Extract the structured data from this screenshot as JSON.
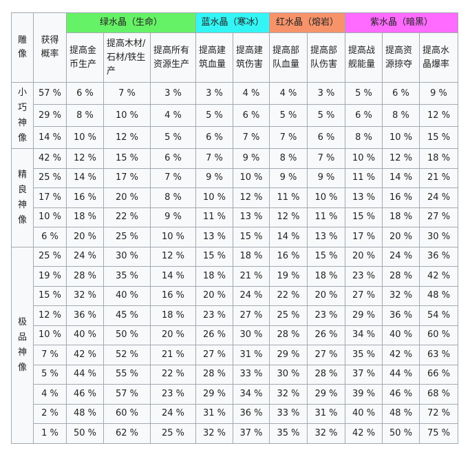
{
  "table": {
    "corner": [
      "雕像",
      "获得概率"
    ],
    "groups": [
      {
        "label": "绿水晶（生命）",
        "color": "#66f266",
        "columns": [
          "提高金币生产",
          "提高木材/石材/铁生产",
          "提高所有资源生产"
        ]
      },
      {
        "label": "蓝水晶（寒冰）",
        "color": "#33f5f5",
        "columns": [
          "提高建筑血量",
          "提高建筑伤害"
        ]
      },
      {
        "label": "红水晶（熔岩）",
        "color": "#f7936a",
        "columns": [
          "提高部队血量",
          "提高部队伤害"
        ]
      },
      {
        "label": "紫水晶（暗黑）",
        "color": "#ff6bff",
        "columns": [
          "提高战舰能量",
          "提高资源掠夺",
          "提高水晶爆率"
        ]
      }
    ],
    "sections": [
      {
        "label": "小巧神像",
        "rows": [
          {
            "probability": "57 %",
            "values": [
              "6 %",
              "7 %",
              "3 %",
              "3 %",
              "4 %",
              "4 %",
              "3 %",
              "5 %",
              "6 %",
              "9 %"
            ]
          },
          {
            "probability": "29 %",
            "values": [
              "8 %",
              "10 %",
              "4 %",
              "5 %",
              "6 %",
              "5 %",
              "5 %",
              "6 %",
              "8 %",
              "12 %"
            ]
          },
          {
            "probability": "14 %",
            "values": [
              "10 %",
              "12 %",
              "5 %",
              "6 %",
              "7 %",
              "7 %",
              "6 %",
              "8 %",
              "10 %",
              "15 %"
            ]
          }
        ]
      },
      {
        "label": "精良神像",
        "rows": [
          {
            "probability": "42 %",
            "values": [
              "12 %",
              "15 %",
              "6 %",
              "7 %",
              "9 %",
              "8 %",
              "7 %",
              "10 %",
              "12 %",
              "18 %"
            ]
          },
          {
            "probability": "25 %",
            "values": [
              "14 %",
              "17 %",
              "7 %",
              "9 %",
              "10 %",
              "9 %",
              "9 %",
              "11 %",
              "14 %",
              "21 %"
            ]
          },
          {
            "probability": "17 %",
            "values": [
              "16 %",
              "20 %",
              "8 %",
              "10 %",
              "12 %",
              "11 %",
              "10 %",
              "13 %",
              "16 %",
              "24 %"
            ]
          },
          {
            "probability": "10 %",
            "values": [
              "18 %",
              "22 %",
              "9 %",
              "11 %",
              "13 %",
              "12 %",
              "11 %",
              "15 %",
              "18 %",
              "27 %"
            ]
          },
          {
            "probability": "6 %",
            "values": [
              "20 %",
              "25 %",
              "10 %",
              "13 %",
              "15 %",
              "14 %",
              "13 %",
              "17 %",
              "20 %",
              "30 %"
            ]
          }
        ]
      },
      {
        "label": "极品神像",
        "rows": [
          {
            "probability": "25 %",
            "values": [
              "24 %",
              "30 %",
              "12 %",
              "15 %",
              "18 %",
              "16 %",
              "15 %",
              "20 %",
              "24 %",
              "36 %"
            ]
          },
          {
            "probability": "19 %",
            "values": [
              "28 %",
              "35 %",
              "14 %",
              "18 %",
              "21 %",
              "19 %",
              "18 %",
              "23 %",
              "28 %",
              "42 %"
            ]
          },
          {
            "probability": "15 %",
            "values": [
              "32 %",
              "40 %",
              "16 %",
              "20 %",
              "24 %",
              "22 %",
              "20 %",
              "27 %",
              "32 %",
              "48 %"
            ]
          },
          {
            "probability": "12 %",
            "values": [
              "36 %",
              "45 %",
              "18 %",
              "23 %",
              "27 %",
              "25 %",
              "23 %",
              "29 %",
              "36 %",
              "54 %"
            ]
          },
          {
            "probability": "10 %",
            "values": [
              "40 %",
              "50 %",
              "20 %",
              "26 %",
              "30 %",
              "28 %",
              "26 %",
              "34 %",
              "40 %",
              "60 %"
            ]
          },
          {
            "probability": "7 %",
            "values": [
              "42 %",
              "52 %",
              "21 %",
              "27 %",
              "31 %",
              "29 %",
              "27 %",
              "35 %",
              "42 %",
              "63 %"
            ]
          },
          {
            "probability": "5 %",
            "values": [
              "44 %",
              "55 %",
              "22 %",
              "28 %",
              "33 %",
              "30 %",
              "28 %",
              "37 %",
              "44 %",
              "66 %"
            ]
          },
          {
            "probability": "4 %",
            "values": [
              "46 %",
              "57 %",
              "23 %",
              "29 %",
              "34 %",
              "32 %",
              "29 %",
              "39 %",
              "46 %",
              "68 %"
            ]
          },
          {
            "probability": "2 %",
            "values": [
              "48 %",
              "60 %",
              "24 %",
              "31 %",
              "36 %",
              "33 %",
              "31 %",
              "40 %",
              "48 %",
              "72 %"
            ]
          },
          {
            "probability": "1 %",
            "values": [
              "50 %",
              "62 %",
              "25 %",
              "32 %",
              "37 %",
              "35 %",
              "32 %",
              "42 %",
              "50 %",
              "75 %"
            ]
          }
        ]
      }
    ]
  }
}
